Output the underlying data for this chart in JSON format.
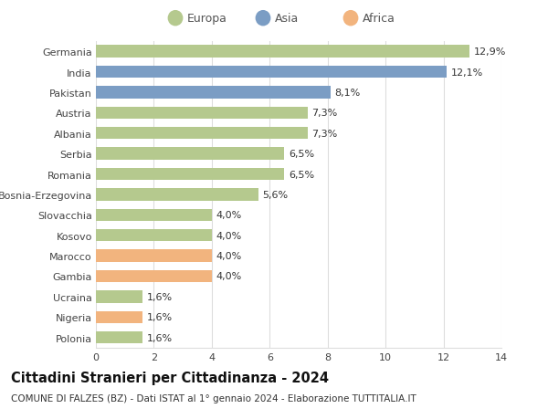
{
  "categories": [
    "Germania",
    "India",
    "Pakistan",
    "Austria",
    "Albania",
    "Serbia",
    "Romania",
    "Bosnia-Erzegovina",
    "Slovacchia",
    "Kosovo",
    "Marocco",
    "Gambia",
    "Ucraina",
    "Nigeria",
    "Polonia"
  ],
  "values": [
    12.9,
    12.1,
    8.1,
    7.3,
    7.3,
    6.5,
    6.5,
    5.6,
    4.0,
    4.0,
    4.0,
    4.0,
    1.6,
    1.6,
    1.6
  ],
  "labels": [
    "12,9%",
    "12,1%",
    "8,1%",
    "7,3%",
    "7,3%",
    "6,5%",
    "6,5%",
    "5,6%",
    "4,0%",
    "4,0%",
    "4,0%",
    "4,0%",
    "1,6%",
    "1,6%",
    "1,6%"
  ],
  "continents": [
    "Europa",
    "Asia",
    "Asia",
    "Europa",
    "Europa",
    "Europa",
    "Europa",
    "Europa",
    "Europa",
    "Europa",
    "Africa",
    "Africa",
    "Europa",
    "Africa",
    "Europa"
  ],
  "colors": {
    "Europa": "#b5c98e",
    "Asia": "#7b9dc4",
    "Africa": "#f2b47e"
  },
  "title": "Cittadini Stranieri per Cittadinanza - 2024",
  "subtitle": "COMUNE DI FALZES (BZ) - Dati ISTAT al 1° gennaio 2024 - Elaborazione TUTTITALIA.IT",
  "xlim": [
    0,
    14
  ],
  "xticks": [
    0,
    2,
    4,
    6,
    8,
    10,
    12,
    14
  ],
  "background_color": "#ffffff",
  "grid_color": "#dddddd",
  "bar_height": 0.6,
  "label_fontsize": 8,
  "title_fontsize": 10.5,
  "subtitle_fontsize": 7.5,
  "tick_fontsize": 8
}
